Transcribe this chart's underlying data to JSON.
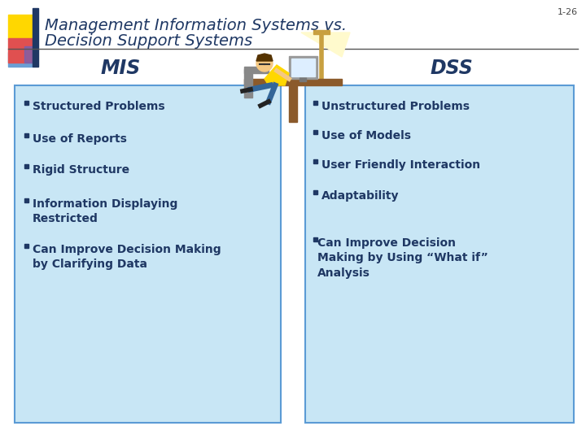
{
  "title_line1": "Management Information Systems vs.",
  "title_line2": "Decision Support Systems",
  "slide_number": "1-26",
  "title_color": "#1F3864",
  "bg_color": "#ffffff",
  "accent_yellow": "#FFD700",
  "accent_red": "#E05050",
  "accent_blue_dark": "#1F3864",
  "accent_blue_light": "#6B9FD4",
  "accent_blue_med": "#4169E1",
  "mis_label": "MIS",
  "dss_label": "DSS",
  "label_color": "#1F3864",
  "box_fill": "#C8E6F5",
  "box_edge": "#5B9BD5",
  "bullet_color": "#1F3864",
  "bullet_sq_color": "#1F3864",
  "header_line_color": "#555555",
  "mis_bullets": [
    "Structured Problems",
    "Use of Reports",
    "Rigid Structure",
    "Information Displaying\nRestricted",
    "Can Improve Decision Making\nby Clarifying Data"
  ],
  "dss_bullets": [
    "Unstructured Problems",
    "Use of Models",
    "User Friendly Interaction",
    "Adaptability",
    "Can Improve Decision\nMaking by Using “What if”\nAnalysis"
  ],
  "dss_last_bullet_no_sq": true
}
